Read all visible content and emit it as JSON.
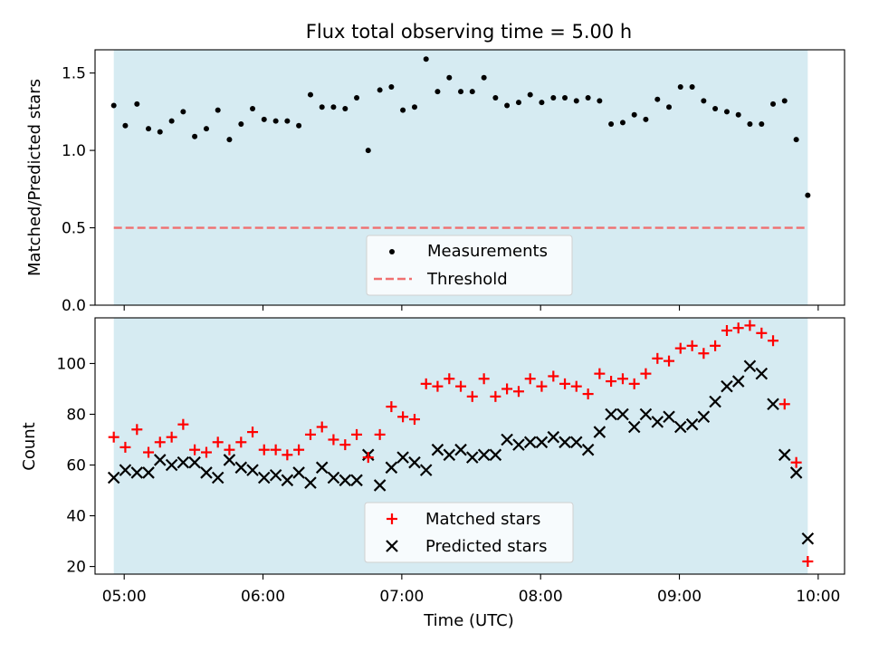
{
  "chart_data": [
    {
      "type": "scatter",
      "title": "Flux total observing time = 5.00 h",
      "xlabel": "",
      "ylabel": "Matched/Predicted stars",
      "xlim": [
        4.79,
        10.19
      ],
      "ylim": [
        0,
        1.65
      ],
      "yticks": [
        0.0,
        0.5,
        1.0,
        1.5
      ],
      "ytick_labels": [
        "0.0",
        "0.5",
        "1.0",
        "1.5"
      ],
      "xticks": [
        5,
        6,
        7,
        8,
        9,
        10
      ],
      "observing_span": [
        4.925,
        9.925
      ],
      "threshold": 0.5,
      "legend_position": "lower center",
      "colors": {
        "span": "#add8e6",
        "measurement": "#000000",
        "threshold": "#f07070"
      },
      "series": [
        {
          "name": "Measurements",
          "x": [
            4.925,
            5.008,
            5.092,
            5.175,
            5.258,
            5.342,
            5.425,
            5.508,
            5.592,
            5.675,
            5.758,
            5.842,
            5.925,
            6.008,
            6.092,
            6.175,
            6.258,
            6.342,
            6.425,
            6.508,
            6.592,
            6.675,
            6.758,
            6.842,
            6.925,
            7.008,
            7.092,
            7.175,
            7.258,
            7.342,
            7.425,
            7.508,
            7.592,
            7.675,
            7.758,
            7.842,
            7.925,
            8.008,
            8.092,
            8.175,
            8.258,
            8.342,
            8.425,
            8.508,
            8.592,
            8.675,
            8.758,
            8.842,
            8.925,
            9.008,
            9.092,
            9.175,
            9.258,
            9.342,
            9.425,
            9.508,
            9.592,
            9.675,
            9.758,
            9.842,
            9.925
          ],
          "values": [
            1.29,
            1.16,
            1.3,
            1.14,
            1.12,
            1.19,
            1.25,
            1.09,
            1.14,
            1.26,
            1.07,
            1.17,
            1.27,
            1.2,
            1.19,
            1.19,
            1.16,
            1.36,
            1.28,
            1.28,
            1.27,
            1.34,
            1.0,
            1.39,
            1.41,
            1.26,
            1.28,
            1.59,
            1.38,
            1.47,
            1.38,
            1.38,
            1.47,
            1.34,
            1.29,
            1.31,
            1.36,
            1.31,
            1.34,
            1.34,
            1.32,
            1.34,
            1.32,
            1.17,
            1.18,
            1.23,
            1.2,
            1.33,
            1.28,
            1.41,
            1.41,
            1.32,
            1.27,
            1.25,
            1.23,
            1.17,
            1.17,
            1.3,
            1.32,
            1.07,
            0.71
          ]
        },
        {
          "name": "Threshold",
          "values": [
            0.5
          ]
        }
      ]
    },
    {
      "type": "scatter",
      "title": "",
      "xlabel": "Time (UTC)",
      "ylabel": "Count",
      "xlim": [
        4.79,
        10.19
      ],
      "ylim": [
        17,
        118
      ],
      "yticks": [
        20,
        40,
        60,
        80,
        100
      ],
      "xticks": [
        5,
        6,
        7,
        8,
        9,
        10
      ],
      "xtick_labels": [
        "05:00",
        "06:00",
        "07:00",
        "08:00",
        "09:00",
        "10:00"
      ],
      "observing_span": [
        4.925,
        9.925
      ],
      "legend_position": "lower center",
      "colors": {
        "span": "#add8e6",
        "matched": "#ff0000",
        "predicted": "#000000"
      },
      "x": [
        4.925,
        5.008,
        5.092,
        5.175,
        5.258,
        5.342,
        5.425,
        5.508,
        5.592,
        5.675,
        5.758,
        5.842,
        5.925,
        6.008,
        6.092,
        6.175,
        6.258,
        6.342,
        6.425,
        6.508,
        6.592,
        6.675,
        6.758,
        6.842,
        6.925,
        7.008,
        7.092,
        7.175,
        7.258,
        7.342,
        7.425,
        7.508,
        7.592,
        7.675,
        7.758,
        7.842,
        7.925,
        8.008,
        8.092,
        8.175,
        8.258,
        8.342,
        8.425,
        8.508,
        8.592,
        8.675,
        8.758,
        8.842,
        8.925,
        9.008,
        9.092,
        9.175,
        9.258,
        9.342,
        9.425,
        9.508,
        9.592,
        9.675,
        9.758,
        9.842,
        9.925
      ],
      "series": [
        {
          "name": "Matched stars",
          "values": [
            71,
            67,
            74,
            65,
            69,
            71,
            76,
            66,
            65,
            69,
            66,
            69,
            73,
            66,
            66,
            64,
            66,
            72,
            75,
            70,
            68,
            72,
            63,
            72,
            83,
            79,
            78,
            92,
            91,
            94,
            91,
            87,
            94,
            87,
            90,
            89,
            94,
            91,
            95,
            92,
            91,
            88,
            96,
            93,
            94,
            92,
            96,
            102,
            101,
            106,
            107,
            104,
            107,
            113,
            114,
            115,
            112,
            109,
            84,
            61,
            22
          ]
        },
        {
          "name": "Predicted stars",
          "values": [
            55,
            58,
            57,
            57,
            62,
            60,
            61,
            61,
            57,
            55,
            62,
            59,
            58,
            55,
            56,
            54,
            57,
            53,
            59,
            55,
            54,
            54,
            64,
            52,
            59,
            63,
            61,
            58,
            66,
            64,
            66,
            63,
            64,
            64,
            70,
            68,
            69,
            69,
            71,
            69,
            69,
            66,
            73,
            80,
            80,
            75,
            80,
            77,
            79,
            75,
            76,
            79,
            85,
            91,
            93,
            99,
            96,
            84,
            64,
            57,
            31
          ]
        }
      ]
    }
  ]
}
